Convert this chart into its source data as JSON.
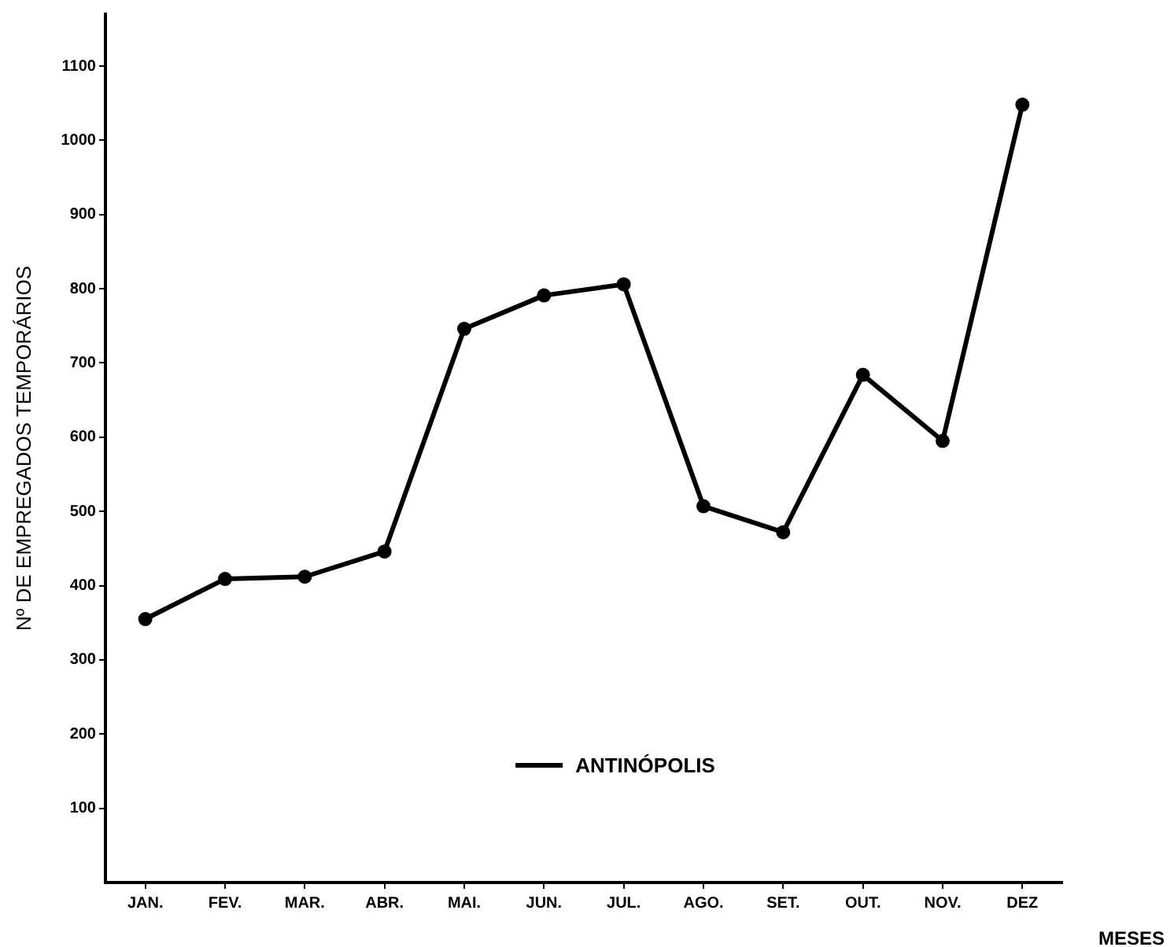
{
  "chart_data": {
    "type": "line",
    "xlabel": "MESES",
    "ylabel": "Nº DE EMPREGADOS TEMPORÁRIOS",
    "categories": [
      "JAN.",
      "FEV.",
      "MAR.",
      "ABR.",
      "MAI.",
      "JUN.",
      "JUL.",
      "AGO.",
      "SET.",
      "OUT.",
      "NOV.",
      "DEZ"
    ],
    "series": [
      {
        "name": "ANTINÓPOLIS",
        "color": "#000000",
        "values": [
          355,
          409,
          412,
          446,
          746,
          791,
          806,
          507,
          472,
          684,
          595,
          1048
        ]
      }
    ],
    "ylim": [
      0,
      1170
    ],
    "yticks": [
      100,
      200,
      300,
      400,
      500,
      600,
      700,
      800,
      900,
      1000,
      1100
    ],
    "grid": false,
    "legend": "bottom",
    "marker": "circle",
    "line_style": "solid"
  }
}
